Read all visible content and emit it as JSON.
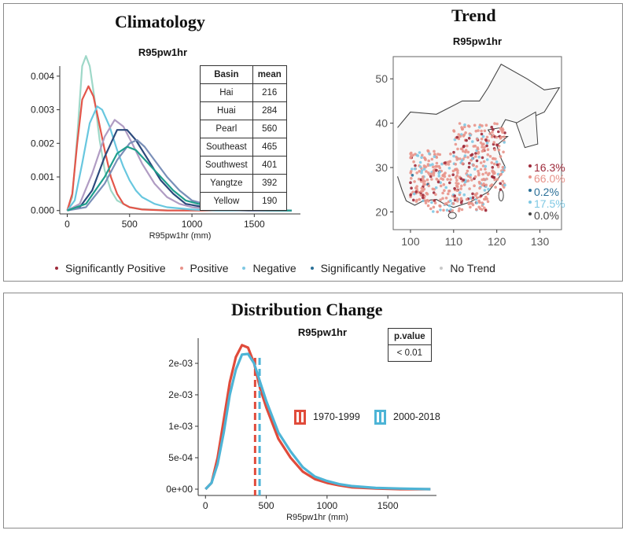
{
  "top_panel": {
    "climatology_title": "Climatology",
    "trend_title": "Trend",
    "legend": [
      {
        "label": "Significantly Positive",
        "color": "#9e2a3a"
      },
      {
        "label": "Positive",
        "color": "#e8938a"
      },
      {
        "label": "Negative",
        "color": "#7ec8e3"
      },
      {
        "label": "Significantly Negative",
        "color": "#2a6f97"
      },
      {
        "label": "No Trend",
        "color": "#c9c9c9"
      }
    ]
  },
  "basin_table": {
    "headers": [
      "Basin",
      "mean"
    ],
    "rows": [
      [
        "Hai",
        "216"
      ],
      [
        "Huai",
        "284"
      ],
      [
        "Pearl",
        "560"
      ],
      [
        "Southeast",
        "465"
      ],
      [
        "Southwest",
        "401"
      ],
      [
        "Yangtze",
        "392"
      ],
      [
        "Yellow",
        "190"
      ]
    ]
  },
  "trend_percentages": [
    {
      "label": "16.3%",
      "color": "#9e2a3a"
    },
    {
      "label": "66.0%",
      "color": "#e8938a"
    },
    {
      "label": "0.2%",
      "color": "#2a6f97"
    },
    {
      "label": "17.5%",
      "color": "#7ec8e3"
    },
    {
      "label": "0.0%",
      "color": "#444444"
    }
  ],
  "bottom_panel": {
    "title": "Distribution Change"
  },
  "pvalue_table": {
    "header": "p.value",
    "value": "< 0.01"
  },
  "chart_data": [
    {
      "type": "line",
      "title": "R95pw1hr",
      "xlabel": "R95pw1hr (mm)",
      "ylabel": "",
      "xlim": [
        -60,
        1870
      ],
      "ylim": [
        -0.0001,
        0.0043
      ],
      "x_ticks": [
        0,
        500,
        1000,
        1500
      ],
      "x_tick_labels": [
        "0",
        "500",
        "1000",
        "1500"
      ],
      "y_ticks": [
        0,
        0.001,
        0.002,
        0.003,
        0.004
      ],
      "y_tick_labels": [
        "0.000",
        "0.001",
        "0.002",
        "0.003",
        "0.004"
      ],
      "series": [
        {
          "name": "Hai",
          "color": "#9ed8c8",
          "x": [
            0,
            40,
            80,
            120,
            150,
            180,
            220,
            260,
            300,
            350,
            400,
            500,
            600,
            800,
            1000,
            1200,
            1500,
            1800
          ],
          "y": [
            0,
            0.0004,
            0.0022,
            0.0043,
            0.0046,
            0.0043,
            0.0033,
            0.0021,
            0.0012,
            0.0006,
            0.0003,
            0.0001,
            4e-05,
            1e-05,
            0,
            0,
            0,
            0
          ]
        },
        {
          "name": "Yellow",
          "color": "#e3564a",
          "x": [
            0,
            40,
            80,
            120,
            170,
            210,
            250,
            300,
            350,
            400,
            450,
            500,
            600,
            800,
            1000,
            1500,
            1800
          ],
          "y": [
            0,
            0.0005,
            0.002,
            0.0033,
            0.0037,
            0.0034,
            0.0027,
            0.0018,
            0.001,
            0.0005,
            0.0002,
            0.0001,
            3e-05,
            0,
            0,
            0,
            0
          ]
        },
        {
          "name": "Huai",
          "color": "#68c7df",
          "x": [
            0,
            60,
            120,
            180,
            240,
            280,
            340,
            400,
            450,
            500,
            550,
            600,
            700,
            800,
            1000,
            1200,
            1500,
            1800
          ],
          "y": [
            0,
            0.0003,
            0.0014,
            0.0026,
            0.0031,
            0.003,
            0.0025,
            0.0018,
            0.0013,
            0.0009,
            0.0006,
            0.0004,
            0.0002,
            0.0001,
            3e-05,
            0,
            0,
            0
          ]
        },
        {
          "name": "Yangtze",
          "color": "#b09cc3",
          "x": [
            0,
            100,
            200,
            300,
            380,
            450,
            520,
            600,
            700,
            800,
            900,
            1000,
            1200,
            1500,
            1800
          ],
          "y": [
            0,
            0.0002,
            0.0011,
            0.0022,
            0.0027,
            0.0025,
            0.002,
            0.0014,
            0.0008,
            0.0004,
            0.0002,
            0.0001,
            3e-05,
            0,
            0
          ]
        },
        {
          "name": "Southwest",
          "color": "#2c4a7c",
          "x": [
            0,
            100,
            200,
            300,
            400,
            480,
            550,
            650,
            750,
            850,
            950,
            1100,
            1300,
            1500,
            1800
          ],
          "y": [
            0,
            0.0001,
            0.0006,
            0.0016,
            0.0024,
            0.0024,
            0.0021,
            0.0015,
            0.0009,
            0.0005,
            0.0002,
            0.0001,
            3e-05,
            0,
            0
          ]
        },
        {
          "name": "Pearl",
          "color": "#7a8fb8",
          "x": [
            0,
            150,
            300,
            400,
            500,
            560,
            620,
            700,
            800,
            900,
            1000,
            1100,
            1300,
            1500,
            1800
          ],
          "y": [
            0,
            0.0001,
            0.0008,
            0.0015,
            0.002,
            0.0021,
            0.0019,
            0.0015,
            0.001,
            0.0006,
            0.0003,
            0.0002,
            5e-05,
            1e-05,
            0
          ]
        },
        {
          "name": "Southeast",
          "color": "#1f9e8c",
          "x": [
            0,
            150,
            300,
            400,
            480,
            550,
            650,
            750,
            850,
            950,
            1050,
            1200,
            1400,
            1600,
            1800
          ],
          "y": [
            0,
            0.0002,
            0.001,
            0.0017,
            0.0019,
            0.0018,
            0.0014,
            0.001,
            0.0006,
            0.0003,
            0.0002,
            0.0001,
            3e-05,
            1e-05,
            0
          ]
        }
      ]
    },
    {
      "type": "scatter",
      "title": "R95pw1hr",
      "xlabel": "",
      "ylabel": "",
      "xlim": [
        96,
        135
      ],
      "ylim": [
        16,
        55
      ],
      "x_ticks": [
        100,
        110,
        120,
        130
      ],
      "x_tick_labels": [
        "100",
        "110",
        "120",
        "130"
      ],
      "y_ticks": [
        20,
        30,
        40,
        50
      ],
      "y_tick_labels": [
        "20",
        "30",
        "40",
        "50"
      ],
      "categories": [
        "Significantly Positive",
        "Positive",
        "Negative",
        "Significantly Negative",
        "No Trend"
      ],
      "category_colors": [
        "#9e2a3a",
        "#e8938a",
        "#7ec8e3",
        "#2a6f97",
        "#c9c9c9"
      ],
      "category_percent": [
        16.3,
        66.0,
        17.5,
        0.2,
        0.0
      ]
    },
    {
      "type": "line",
      "title": "R95pw1hr",
      "xlabel": "R95pw1hr (mm)",
      "ylabel": "",
      "xlim": [
        -60,
        1900
      ],
      "ylim": [
        -0.0001,
        0.0024
      ],
      "x_ticks": [
        0,
        500,
        1000,
        1500
      ],
      "x_tick_labels": [
        "0",
        "500",
        "1000",
        "1500"
      ],
      "y_ticks": [
        0,
        0.0005,
        0.001,
        0.0015,
        0.002
      ],
      "y_tick_labels": [
        "0e+00",
        "5e-04",
        "1e-03",
        "2e-03",
        "2e-03"
      ],
      "series": [
        {
          "name": "1970-1999",
          "color": "#e04b3b",
          "x": [
            0,
            50,
            100,
            150,
            200,
            250,
            300,
            350,
            400,
            450,
            500,
            600,
            700,
            800,
            900,
            1000,
            1100,
            1200,
            1400,
            1600,
            1850
          ],
          "y": [
            0,
            0.0001,
            0.0005,
            0.0011,
            0.0017,
            0.0021,
            0.00229,
            0.00225,
            0.002,
            0.0016,
            0.0013,
            0.0008,
            0.0005,
            0.00028,
            0.00016,
            0.0001,
            6e-05,
            3e-05,
            1e-05,
            0,
            0
          ],
          "mean": 408
        },
        {
          "name": "2000-2018",
          "color": "#4db4d6",
          "x": [
            0,
            50,
            100,
            150,
            200,
            250,
            300,
            350,
            400,
            450,
            500,
            600,
            700,
            800,
            900,
            1000,
            1100,
            1200,
            1400,
            1600,
            1850
          ],
          "y": [
            0,
            0.0001,
            0.0004,
            0.0009,
            0.0015,
            0.0019,
            0.00214,
            0.00215,
            0.002,
            0.0017,
            0.0014,
            0.0009,
            0.0006,
            0.00035,
            0.0002,
            0.00013,
            8e-05,
            5e-05,
            2e-05,
            1e-05,
            0
          ],
          "mean": 445
        }
      ]
    }
  ]
}
